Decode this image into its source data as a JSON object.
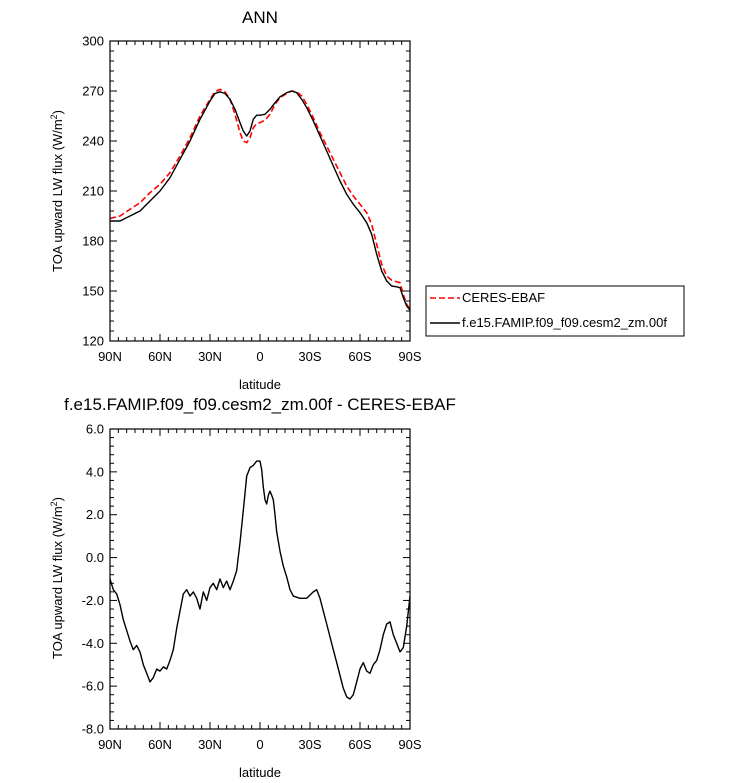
{
  "chart_data": [
    {
      "type": "line",
      "title": "ANN",
      "xlabel": "latitude",
      "ylabel": "TOA upward LW flux (W/m",
      "ylabel_sup": "2",
      "ylabel_close": ")",
      "xlim": [
        90,
        -90
      ],
      "ylim": [
        120,
        300
      ],
      "x_ticks": [
        90,
        60,
        30,
        0,
        -30,
        -60,
        -90
      ],
      "x_tick_labels": [
        "90N",
        "60N",
        "30N",
        "0",
        "30S",
        "60S",
        "90S"
      ],
      "y_ticks": [
        120,
        150,
        180,
        210,
        240,
        270,
        300
      ],
      "y_tick_labels": [
        "120",
        "150",
        "180",
        "210",
        "240",
        "270",
        "300"
      ],
      "legend_position": "outside-right",
      "series": [
        {
          "name": "CERES-EBAF",
          "color": "#ff0000",
          "dash": "dashed",
          "points": [
            [
              90,
              193.5
            ],
            [
              84,
              195
            ],
            [
              78,
              199
            ],
            [
              72,
              203
            ],
            [
              66,
              209
            ],
            [
              60,
              214
            ],
            [
              54,
              221
            ],
            [
              48,
              231
            ],
            [
              42,
              242
            ],
            [
              36,
              255
            ],
            [
              30,
              265
            ],
            [
              27,
              269.5
            ],
            [
              24,
              271
            ],
            [
              21,
              269.5
            ],
            [
              18,
              265
            ],
            [
              15,
              256
            ],
            [
              12,
              245
            ],
            [
              10,
              240
            ],
            [
              8,
              239
            ],
            [
              6,
              242
            ],
            [
              4,
              248
            ],
            [
              2,
              250.5
            ],
            [
              0,
              251
            ],
            [
              -3,
              252.5
            ],
            [
              -6,
              256
            ],
            [
              -9,
              262
            ],
            [
              -12,
              266
            ],
            [
              -16,
              268.5
            ],
            [
              -19,
              270
            ],
            [
              -22,
              269.5
            ],
            [
              -25,
              267
            ],
            [
              -28,
              262
            ],
            [
              -32,
              254
            ],
            [
              -36,
              245
            ],
            [
              -40,
              237
            ],
            [
              -44,
              229
            ],
            [
              -48,
              221
            ],
            [
              -52,
              213
            ],
            [
              -56,
              207
            ],
            [
              -60,
              202
            ],
            [
              -64,
              197
            ],
            [
              -67,
              190
            ],
            [
              -70,
              178
            ],
            [
              -73,
              166
            ],
            [
              -76,
              159
            ],
            [
              -79,
              156.5
            ],
            [
              -82,
              155.5
            ],
            [
              -84,
              155
            ],
            [
              -86,
              148
            ],
            [
              -88,
              142
            ],
            [
              -90,
              139
            ]
          ]
        },
        {
          "name": "f.e15.FAMIP.f09_f09.cesm2_zm.00f",
          "color": "#000000",
          "dash": "solid",
          "points": [
            [
              90,
              192
            ],
            [
              84,
              192
            ],
            [
              78,
              195
            ],
            [
              72,
              198
            ],
            [
              66,
              204
            ],
            [
              60,
              210
            ],
            [
              54,
              218
            ],
            [
              48,
              229
            ],
            [
              42,
              240
            ],
            [
              36,
              253
            ],
            [
              30,
              264
            ],
            [
              27,
              268.5
            ],
            [
              24,
              269.5
            ],
            [
              21,
              268.5
            ],
            [
              18,
              265
            ],
            [
              15,
              259
            ],
            [
              12,
              251
            ],
            [
              10,
              246
            ],
            [
              8,
              243
            ],
            [
              6,
              246
            ],
            [
              4,
              253
            ],
            [
              2,
              255.5
            ],
            [
              0,
              255.5
            ],
            [
              -3,
              256
            ],
            [
              -6,
              259
            ],
            [
              -9,
              263
            ],
            [
              -12,
              266.5
            ],
            [
              -16,
              269
            ],
            [
              -19,
              270
            ],
            [
              -22,
              269
            ],
            [
              -25,
              265
            ],
            [
              -28,
              260
            ],
            [
              -32,
              252
            ],
            [
              -36,
              243
            ],
            [
              -40,
              234
            ],
            [
              -44,
              225
            ],
            [
              -48,
              216
            ],
            [
              -52,
              208
            ],
            [
              -56,
              202
            ],
            [
              -60,
              197
            ],
            [
              -64,
              191
            ],
            [
              -67,
              184
            ],
            [
              -70,
              172
            ],
            [
              -73,
              162
            ],
            [
              -76,
              156
            ],
            [
              -79,
              153
            ],
            [
              -82,
              152.5
            ],
            [
              -84,
              152
            ],
            [
              -86,
              146
            ],
            [
              -88,
              141
            ],
            [
              -90,
              138.5
            ]
          ]
        }
      ]
    },
    {
      "type": "line",
      "title": "f.e15.FAMIP.f09_f09.cesm2_zm.00f - CERES-EBAF",
      "xlabel": "latitude",
      "ylabel": "TOA upward LW flux (W/m",
      "ylabel_sup": "2",
      "ylabel_close": ")",
      "xlim": [
        90,
        -90
      ],
      "ylim": [
        -8,
        6
      ],
      "x_ticks": [
        90,
        60,
        30,
        0,
        -30,
        -60,
        -90
      ],
      "x_tick_labels": [
        "90N",
        "60N",
        "30N",
        "0",
        "30S",
        "60S",
        "90S"
      ],
      "y_ticks": [
        -8,
        -6,
        -4,
        -2,
        0,
        2,
        4,
        6
      ],
      "y_tick_labels": [
        "-8.0",
        "-6.0",
        "-4.0",
        "-2.0",
        "0.0",
        "2.0",
        "4.0",
        "6.0"
      ],
      "series": [
        {
          "name": "f.e15.FAMIP.f09_f09.cesm2_zm.00f - CERES-EBAF",
          "color": "#000000",
          "dash": "solid",
          "points": [
            [
              90,
              -1.0
            ],
            [
              88,
              -1.5
            ],
            [
              86,
              -1.7
            ],
            [
              84,
              -2.2
            ],
            [
              82,
              -2.9
            ],
            [
              80,
              -3.4
            ],
            [
              78,
              -3.9
            ],
            [
              76,
              -4.3
            ],
            [
              74,
              -4.1
            ],
            [
              72,
              -4.4
            ],
            [
              70,
              -5.0
            ],
            [
              68,
              -5.4
            ],
            [
              66,
              -5.8
            ],
            [
              64,
              -5.6
            ],
            [
              62,
              -5.2
            ],
            [
              60,
              -5.3
            ],
            [
              58,
              -5.1
            ],
            [
              56,
              -5.2
            ],
            [
              54,
              -4.8
            ],
            [
              52,
              -4.3
            ],
            [
              50,
              -3.3
            ],
            [
              48,
              -2.5
            ],
            [
              46,
              -1.7
            ],
            [
              44,
              -1.5
            ],
            [
              42,
              -1.8
            ],
            [
              40,
              -1.6
            ],
            [
              38,
              -1.9
            ],
            [
              36,
              -2.4
            ],
            [
              34,
              -1.6
            ],
            [
              32,
              -2.0
            ],
            [
              30,
              -1.4
            ],
            [
              28,
              -1.2
            ],
            [
              26,
              -1.5
            ],
            [
              24,
              -1.0
            ],
            [
              22,
              -1.4
            ],
            [
              20,
              -1.1
            ],
            [
              18,
              -1.5
            ],
            [
              16,
              -1.1
            ],
            [
              14,
              -0.6
            ],
            [
              12,
              0.7
            ],
            [
              10,
              2.2
            ],
            [
              8,
              3.8
            ],
            [
              6,
              4.2
            ],
            [
              4,
              4.3
            ],
            [
              2,
              4.5
            ],
            [
              0,
              4.5
            ],
            [
              -1,
              4.1
            ],
            [
              -2,
              3.3
            ],
            [
              -3,
              2.7
            ],
            [
              -4,
              2.5
            ],
            [
              -5,
              2.9
            ],
            [
              -6,
              3.1
            ],
            [
              -7,
              2.9
            ],
            [
              -8,
              2.7
            ],
            [
              -9,
              2.0
            ],
            [
              -10,
              1.2
            ],
            [
              -12,
              0.3
            ],
            [
              -14,
              -0.4
            ],
            [
              -16,
              -0.9
            ],
            [
              -18,
              -1.5
            ],
            [
              -20,
              -1.8
            ],
            [
              -24,
              -1.9
            ],
            [
              -28,
              -1.9
            ],
            [
              -32,
              -1.6
            ],
            [
              -34,
              -1.5
            ],
            [
              -36,
              -1.9
            ],
            [
              -38,
              -2.5
            ],
            [
              -40,
              -3.1
            ],
            [
              -42,
              -3.7
            ],
            [
              -44,
              -4.3
            ],
            [
              -46,
              -4.9
            ],
            [
              -48,
              -5.5
            ],
            [
              -50,
              -6.1
            ],
            [
              -52,
              -6.5
            ],
            [
              -54,
              -6.6
            ],
            [
              -56,
              -6.4
            ],
            [
              -58,
              -5.8
            ],
            [
              -60,
              -5.2
            ],
            [
              -62,
              -4.9
            ],
            [
              -64,
              -5.3
            ],
            [
              -66,
              -5.4
            ],
            [
              -68,
              -5.0
            ],
            [
              -70,
              -4.8
            ],
            [
              -72,
              -4.3
            ],
            [
              -74,
              -3.6
            ],
            [
              -76,
              -3.1
            ],
            [
              -78,
              -3.0
            ],
            [
              -80,
              -3.6
            ],
            [
              -82,
              -4.0
            ],
            [
              -84,
              -4.4
            ],
            [
              -86,
              -4.2
            ],
            [
              -88,
              -3.2
            ],
            [
              -90,
              -1.8
            ]
          ]
        }
      ]
    }
  ]
}
